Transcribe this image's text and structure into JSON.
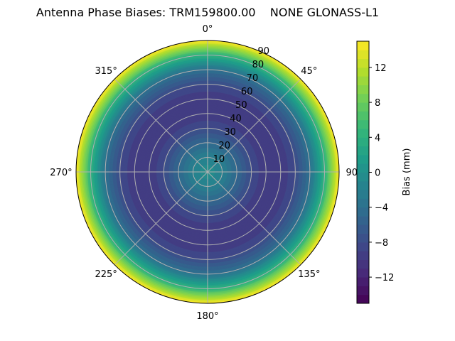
{
  "chart_data": {
    "type": "heatmap",
    "subtype": "polar-contour",
    "title": "Antenna Phase Biases: TRM159800.00    NONE GLONASS-L1",
    "angular_tick_labels": [
      "0°",
      "45°",
      "90°",
      "135°",
      "180°",
      "225°",
      "270°",
      "315°"
    ],
    "radial_tick_labels": [
      "10",
      "20",
      "30",
      "40",
      "50",
      "60",
      "70",
      "80",
      "90"
    ],
    "radial_range": [
      0,
      90
    ],
    "grid": true,
    "colormap": "viridis",
    "colorbar": {
      "label": "Bias (mm)",
      "range": [
        -15,
        15
      ],
      "level_step": 1,
      "ticks": [
        -12,
        -8,
        -4,
        0,
        4,
        8,
        12
      ],
      "tick_labels": [
        "−12",
        "−8",
        "−4",
        "0",
        "4",
        "8",
        "12"
      ]
    },
    "radial_profile": {
      "zenith_deg": [
        0,
        10,
        20,
        30,
        40,
        50,
        60,
        70,
        80,
        90
      ],
      "bias_mm": [
        0,
        -2,
        -5,
        -8,
        -10,
        -10,
        -8,
        -4,
        4,
        15
      ]
    }
  }
}
